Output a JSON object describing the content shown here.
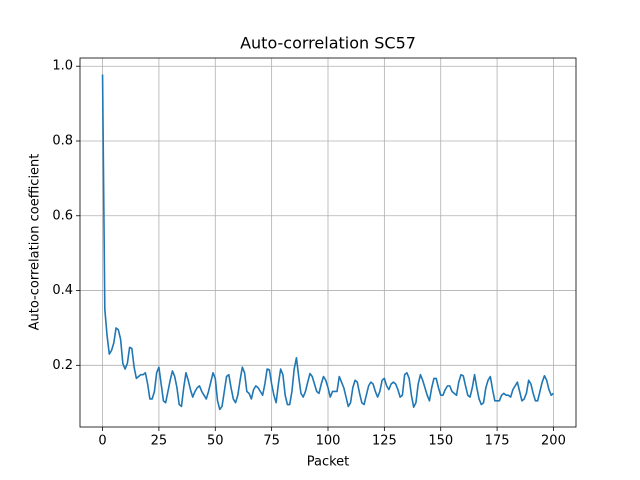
{
  "chart_data": {
    "type": "line",
    "title": "Auto-correlation SC57",
    "xlabel": "Packet",
    "ylabel": "Auto-correlation coefficient",
    "color": "#1f77b4",
    "grid": true,
    "xlim": [
      -10,
      210
    ],
    "ylim": [
      0.035,
      1.022
    ],
    "xticks": [
      0,
      25,
      50,
      75,
      100,
      125,
      150,
      175,
      200
    ],
    "yticks": [
      0.2,
      0.4,
      0.6,
      0.8,
      {
        "value": 1,
        "label": "1.0"
      }
    ],
    "x": [
      0,
      1,
      2,
      3,
      4,
      5,
      6,
      7,
      8,
      9,
      10,
      11,
      12,
      13,
      14,
      15,
      16,
      17,
      18,
      19,
      20,
      21,
      22,
      23,
      24,
      25,
      26,
      27,
      28,
      29,
      30,
      31,
      32,
      33,
      34,
      35,
      36,
      37,
      38,
      39,
      40,
      41,
      42,
      43,
      44,
      45,
      46,
      47,
      48,
      49,
      50,
      51,
      52,
      53,
      54,
      55,
      56,
      57,
      58,
      59,
      60,
      61,
      62,
      63,
      64,
      65,
      66,
      67,
      68,
      69,
      70,
      71,
      72,
      73,
      74,
      75,
      76,
      77,
      78,
      79,
      80,
      81,
      82,
      83,
      84,
      85,
      86,
      87,
      88,
      89,
      90,
      91,
      92,
      93,
      94,
      95,
      96,
      97,
      98,
      99,
      100,
      101,
      102,
      103,
      104,
      105,
      106,
      107,
      108,
      109,
      110,
      111,
      112,
      113,
      114,
      115,
      116,
      117,
      118,
      119,
      120,
      121,
      122,
      123,
      124,
      125,
      126,
      127,
      128,
      129,
      130,
      131,
      132,
      133,
      134,
      135,
      136,
      137,
      138,
      139,
      140,
      141,
      142,
      143,
      144,
      145,
      146,
      147,
      148,
      149,
      150,
      151,
      152,
      153,
      154,
      155,
      156,
      157,
      158,
      159,
      160,
      161,
      162,
      163,
      164,
      165,
      166,
      167,
      168,
      169,
      170,
      171,
      172,
      173,
      174,
      175,
      176,
      177,
      178,
      179,
      180,
      181,
      182,
      183,
      184,
      185,
      186,
      187,
      188,
      189,
      190,
      191,
      192,
      193,
      194,
      195,
      196,
      197,
      198,
      199,
      200
    ],
    "values": [
      0.978,
      0.35,
      0.28,
      0.23,
      0.24,
      0.26,
      0.3,
      0.295,
      0.27,
      0.205,
      0.19,
      0.205,
      0.248,
      0.245,
      0.195,
      0.165,
      0.17,
      0.175,
      0.175,
      0.18,
      0.15,
      0.11,
      0.11,
      0.13,
      0.18,
      0.195,
      0.15,
      0.105,
      0.1,
      0.13,
      0.16,
      0.185,
      0.17,
      0.14,
      0.095,
      0.09,
      0.14,
      0.18,
      0.16,
      0.135,
      0.115,
      0.13,
      0.14,
      0.145,
      0.13,
      0.12,
      0.11,
      0.13,
      0.155,
      0.18,
      0.165,
      0.105,
      0.082,
      0.09,
      0.13,
      0.17,
      0.175,
      0.14,
      0.11,
      0.1,
      0.12,
      0.16,
      0.195,
      0.18,
      0.13,
      0.125,
      0.11,
      0.135,
      0.145,
      0.14,
      0.13,
      0.12,
      0.15,
      0.19,
      0.188,
      0.15,
      0.12,
      0.1,
      0.15,
      0.19,
      0.175,
      0.12,
      0.095,
      0.095,
      0.13,
      0.19,
      0.22,
      0.17,
      0.125,
      0.115,
      0.13,
      0.155,
      0.178,
      0.17,
      0.15,
      0.13,
      0.125,
      0.15,
      0.17,
      0.16,
      0.14,
      0.115,
      0.13,
      0.13,
      0.13,
      0.17,
      0.155,
      0.14,
      0.115,
      0.09,
      0.1,
      0.14,
      0.16,
      0.155,
      0.125,
      0.1,
      0.095,
      0.12,
      0.145,
      0.155,
      0.15,
      0.13,
      0.115,
      0.13,
      0.16,
      0.165,
      0.145,
      0.135,
      0.15,
      0.155,
      0.15,
      0.135,
      0.115,
      0.12,
      0.175,
      0.18,
      0.165,
      0.12,
      0.088,
      0.1,
      0.15,
      0.175,
      0.16,
      0.14,
      0.12,
      0.105,
      0.14,
      0.165,
      0.165,
      0.14,
      0.12,
      0.12,
      0.135,
      0.145,
      0.145,
      0.13,
      0.125,
      0.12,
      0.155,
      0.175,
      0.172,
      0.145,
      0.12,
      0.115,
      0.14,
      0.175,
      0.14,
      0.11,
      0.095,
      0.1,
      0.14,
      0.16,
      0.17,
      0.135,
      0.105,
      0.105,
      0.105,
      0.12,
      0.125,
      0.12,
      0.12,
      0.115,
      0.135,
      0.145,
      0.155,
      0.13,
      0.105,
      0.11,
      0.125,
      0.16,
      0.15,
      0.125,
      0.105,
      0.105,
      0.13,
      0.155,
      0.172,
      0.16,
      0.135,
      0.12,
      0.125
    ]
  }
}
